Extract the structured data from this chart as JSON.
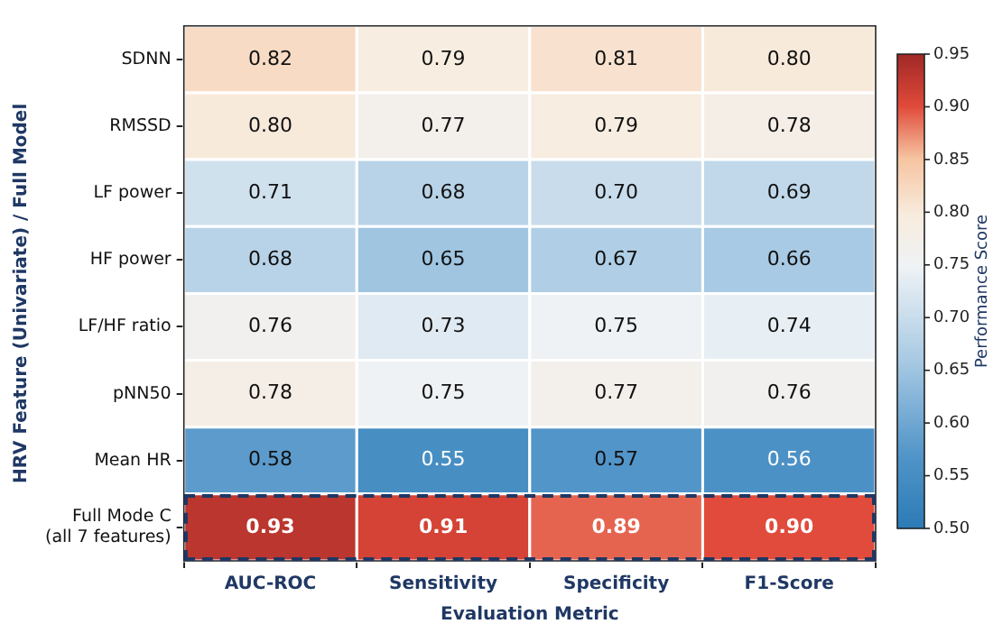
{
  "chart_data": {
    "type": "heatmap",
    "xlabel": "Evaluation Metric",
    "ylabel": "HRV Feature (Univariate) / Full Model",
    "clabel": "Performance Score",
    "categories": [
      "AUC-ROC",
      "Sensitivity",
      "Specificity",
      "F1-Score"
    ],
    "y_categories": [
      "SDNN",
      "RMSSD",
      "LF power",
      "HF power",
      "LF/HF ratio",
      "pNN50",
      "Mean HR",
      "Full Mode C\n(all 7 features)"
    ],
    "cells": [
      [
        0.82,
        0.79,
        0.81,
        0.8
      ],
      [
        0.8,
        0.77,
        0.79,
        0.78
      ],
      [
        0.71,
        0.68,
        0.7,
        0.69
      ],
      [
        0.68,
        0.65,
        0.67,
        0.66
      ],
      [
        0.76,
        0.73,
        0.75,
        0.74
      ],
      [
        0.78,
        0.75,
        0.77,
        0.76
      ],
      [
        0.58,
        0.55,
        0.57,
        0.56
      ],
      [
        0.93,
        0.91,
        0.89,
        0.9
      ]
    ],
    "cell_labels": [
      [
        "0.82",
        "0.79",
        "0.81",
        "0.80"
      ],
      [
        "0.80",
        "0.77",
        "0.79",
        "0.78"
      ],
      [
        "0.71",
        "0.68",
        "0.70",
        "0.69"
      ],
      [
        "0.68",
        "0.65",
        "0.67",
        "0.66"
      ],
      [
        "0.76",
        "0.73",
        "0.75",
        "0.74"
      ],
      [
        "0.78",
        "0.75",
        "0.77",
        "0.76"
      ],
      [
        "0.58",
        "0.55",
        "0.57",
        "0.56"
      ],
      [
        "0.93",
        "0.91",
        "0.89",
        "0.90"
      ]
    ],
    "clim": [
      0.5,
      0.95
    ],
    "cticks": [
      {
        "value": 0.5,
        "label": "0.50"
      },
      0.55,
      {
        "value": 0.6,
        "label": "0.60"
      },
      0.65,
      {
        "value": 0.7,
        "label": "0.70"
      },
      0.75,
      {
        "value": 0.8,
        "label": "0.80"
      },
      0.85,
      {
        "value": 0.9,
        "label": "0.90"
      },
      0.95
    ]
  }
}
